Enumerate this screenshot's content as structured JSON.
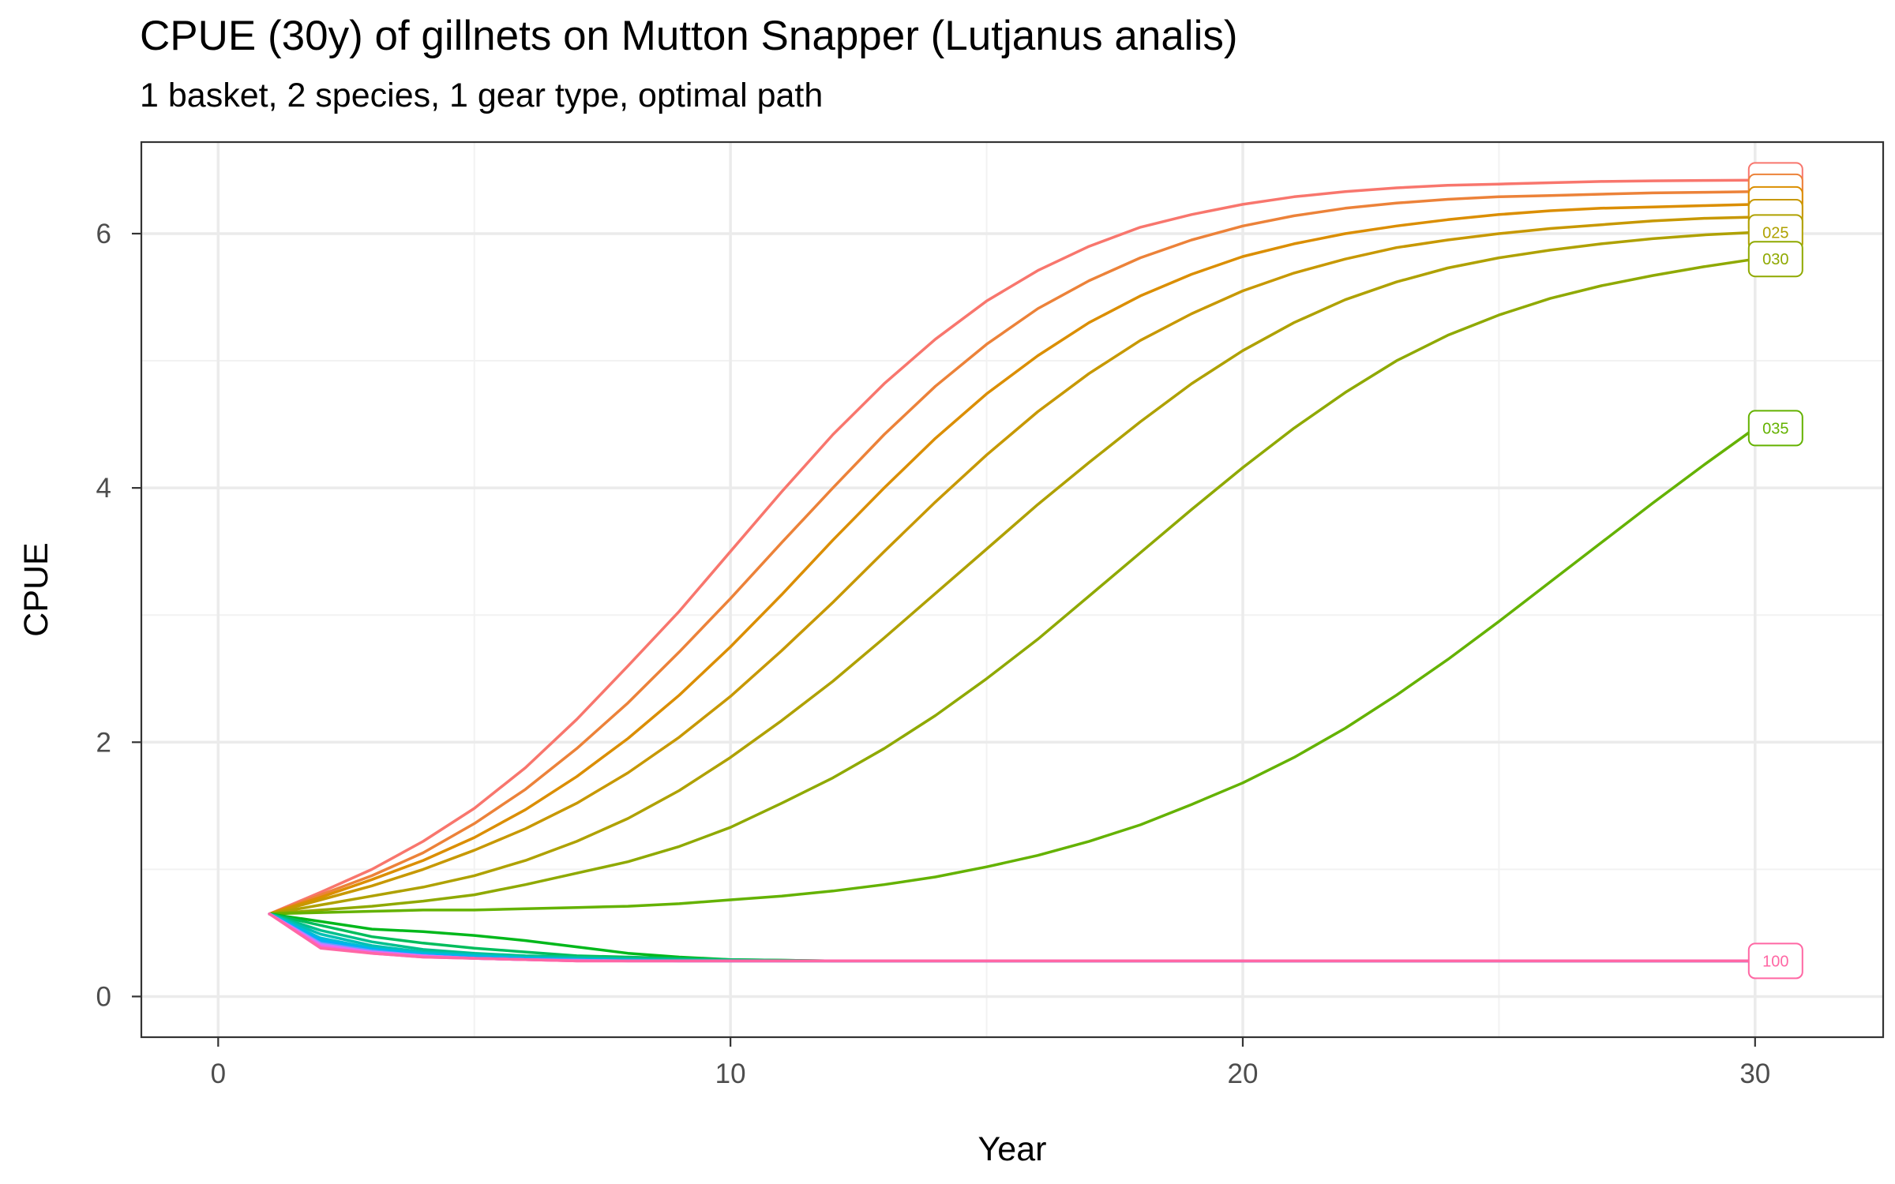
{
  "chart_data": {
    "type": "line",
    "title": "CPUE (30y) of gillnets on Mutton Snapper (Lutjanus analis)",
    "subtitle": "1 basket, 2 species, 1 gear type, optimal path",
    "xlabel": "Year",
    "ylabel": "CPUE",
    "xlim": [
      -1.5,
      32.5
    ],
    "ylim": [
      -0.32,
      6.72
    ],
    "xticks": [
      0,
      10,
      20,
      30
    ],
    "yticks": [
      0,
      2,
      4,
      6
    ],
    "grid": true,
    "legend": "none",
    "x": [
      1,
      2,
      3,
      4,
      5,
      6,
      7,
      8,
      9,
      10,
      11,
      12,
      13,
      14,
      15,
      16,
      17,
      18,
      19,
      20,
      21,
      22,
      23,
      24,
      25,
      26,
      27,
      28,
      29,
      30
    ],
    "series": [
      {
        "name": "",
        "color": "#f8766d",
        "values": [
          0.65,
          0.82,
          1.0,
          1.22,
          1.48,
          1.8,
          2.18,
          2.6,
          3.03,
          3.5,
          3.97,
          4.42,
          4.82,
          5.17,
          5.47,
          5.71,
          5.9,
          6.05,
          6.15,
          6.23,
          6.29,
          6.33,
          6.36,
          6.38,
          6.39,
          6.4,
          6.41,
          6.415,
          6.418,
          6.42
        ]
      },
      {
        "name": "",
        "color": "#ec8239",
        "values": [
          0.65,
          0.8,
          0.95,
          1.13,
          1.36,
          1.63,
          1.95,
          2.31,
          2.71,
          3.13,
          3.57,
          4.0,
          4.42,
          4.8,
          5.13,
          5.41,
          5.63,
          5.81,
          5.95,
          6.06,
          6.14,
          6.2,
          6.24,
          6.27,
          6.29,
          6.3,
          6.31,
          6.32,
          6.325,
          6.33
        ]
      },
      {
        "name": "",
        "color": "#db8e00",
        "values": [
          0.65,
          0.78,
          0.92,
          1.07,
          1.25,
          1.47,
          1.73,
          2.03,
          2.37,
          2.75,
          3.16,
          3.59,
          4.0,
          4.39,
          4.74,
          5.04,
          5.3,
          5.51,
          5.68,
          5.82,
          5.92,
          6.0,
          6.06,
          6.11,
          6.15,
          6.18,
          6.2,
          6.21,
          6.22,
          6.23
        ]
      },
      {
        "name": "",
        "color": "#c79800",
        "values": [
          0.65,
          0.76,
          0.87,
          1.0,
          1.15,
          1.32,
          1.52,
          1.76,
          2.04,
          2.36,
          2.72,
          3.1,
          3.5,
          3.89,
          4.26,
          4.6,
          4.9,
          5.16,
          5.37,
          5.55,
          5.69,
          5.8,
          5.89,
          5.95,
          6.0,
          6.04,
          6.07,
          6.1,
          6.12,
          6.13
        ]
      },
      {
        "name": "025",
        "color": "#afa100",
        "values": [
          0.65,
          0.72,
          0.79,
          0.86,
          0.95,
          1.07,
          1.22,
          1.4,
          1.62,
          1.88,
          2.17,
          2.48,
          2.82,
          3.17,
          3.52,
          3.87,
          4.2,
          4.52,
          4.82,
          5.08,
          5.3,
          5.48,
          5.62,
          5.73,
          5.81,
          5.87,
          5.92,
          5.96,
          5.99,
          6.01
        ]
      },
      {
        "name": "030",
        "color": "#8fa900",
        "values": [
          0.65,
          0.68,
          0.71,
          0.75,
          0.8,
          0.88,
          0.97,
          1.06,
          1.18,
          1.33,
          1.52,
          1.72,
          1.95,
          2.21,
          2.5,
          2.81,
          3.15,
          3.49,
          3.83,
          4.16,
          4.47,
          4.75,
          5.0,
          5.2,
          5.36,
          5.49,
          5.59,
          5.67,
          5.74,
          5.8
        ]
      },
      {
        "name": "035",
        "color": "#64b200",
        "values": [
          0.65,
          0.66,
          0.67,
          0.68,
          0.68,
          0.69,
          0.7,
          0.71,
          0.73,
          0.76,
          0.79,
          0.83,
          0.88,
          0.94,
          1.02,
          1.11,
          1.22,
          1.35,
          1.51,
          1.68,
          1.88,
          2.11,
          2.37,
          2.65,
          2.95,
          3.26,
          3.57,
          3.88,
          4.18,
          4.47
        ]
      },
      {
        "name": "",
        "color": "#00b81b",
        "values": [
          0.65,
          0.59,
          0.53,
          0.51,
          0.48,
          0.44,
          0.39,
          0.34,
          0.31,
          0.29,
          0.285,
          0.28,
          0.28,
          0.28,
          0.28,
          0.28,
          0.28,
          0.28,
          0.28,
          0.28,
          0.28,
          0.28,
          0.28,
          0.28,
          0.28,
          0.28,
          0.28,
          0.28,
          0.28,
          0.28
        ]
      },
      {
        "name": "",
        "color": "#00bd5c",
        "values": [
          0.65,
          0.56,
          0.47,
          0.42,
          0.38,
          0.35,
          0.32,
          0.31,
          0.3,
          0.29,
          0.285,
          0.28,
          0.28,
          0.28,
          0.28,
          0.28,
          0.28,
          0.28,
          0.28,
          0.28,
          0.28,
          0.28,
          0.28,
          0.28,
          0.28,
          0.28,
          0.28,
          0.28,
          0.28,
          0.28
        ]
      },
      {
        "name": "",
        "color": "#00c08d",
        "values": [
          0.65,
          0.52,
          0.43,
          0.37,
          0.34,
          0.32,
          0.31,
          0.3,
          0.29,
          0.285,
          0.28,
          0.28,
          0.28,
          0.28,
          0.28,
          0.28,
          0.28,
          0.28,
          0.28,
          0.28,
          0.28,
          0.28,
          0.28,
          0.28,
          0.28,
          0.28,
          0.28,
          0.28,
          0.28,
          0.28
        ]
      },
      {
        "name": "",
        "color": "#00c0b5",
        "values": [
          0.65,
          0.49,
          0.4,
          0.35,
          0.33,
          0.31,
          0.3,
          0.29,
          0.285,
          0.28,
          0.28,
          0.28,
          0.28,
          0.28,
          0.28,
          0.28,
          0.28,
          0.28,
          0.28,
          0.28,
          0.28,
          0.28,
          0.28,
          0.28,
          0.28,
          0.28,
          0.28,
          0.28,
          0.28,
          0.28
        ]
      },
      {
        "name": "",
        "color": "#00bcd8",
        "values": [
          0.65,
          0.46,
          0.38,
          0.34,
          0.32,
          0.3,
          0.29,
          0.285,
          0.28,
          0.28,
          0.28,
          0.28,
          0.28,
          0.28,
          0.28,
          0.28,
          0.28,
          0.28,
          0.28,
          0.28,
          0.28,
          0.28,
          0.28,
          0.28,
          0.28,
          0.28,
          0.28,
          0.28,
          0.28,
          0.28
        ]
      },
      {
        "name": "",
        "color": "#00b0f6",
        "values": [
          0.65,
          0.44,
          0.37,
          0.33,
          0.31,
          0.3,
          0.29,
          0.285,
          0.28,
          0.28,
          0.28,
          0.28,
          0.28,
          0.28,
          0.28,
          0.28,
          0.28,
          0.28,
          0.28,
          0.28,
          0.28,
          0.28,
          0.28,
          0.28,
          0.28,
          0.28,
          0.28,
          0.28,
          0.28,
          0.28
        ]
      },
      {
        "name": "",
        "color": "#619cff",
        "values": [
          0.65,
          0.42,
          0.36,
          0.32,
          0.3,
          0.29,
          0.285,
          0.28,
          0.28,
          0.28,
          0.28,
          0.28,
          0.28,
          0.28,
          0.28,
          0.28,
          0.28,
          0.28,
          0.28,
          0.28,
          0.28,
          0.28,
          0.28,
          0.28,
          0.28,
          0.28,
          0.28,
          0.28,
          0.28,
          0.28
        ]
      },
      {
        "name": "",
        "color": "#b983ff",
        "values": [
          0.65,
          0.41,
          0.35,
          0.32,
          0.3,
          0.29,
          0.285,
          0.28,
          0.28,
          0.28,
          0.28,
          0.28,
          0.28,
          0.28,
          0.28,
          0.28,
          0.28,
          0.28,
          0.28,
          0.28,
          0.28,
          0.28,
          0.28,
          0.28,
          0.28,
          0.28,
          0.28,
          0.28,
          0.28,
          0.28
        ]
      },
      {
        "name": "",
        "color": "#e76bf3",
        "values": [
          0.65,
          0.4,
          0.35,
          0.32,
          0.3,
          0.29,
          0.28,
          0.28,
          0.28,
          0.28,
          0.28,
          0.28,
          0.28,
          0.28,
          0.28,
          0.28,
          0.28,
          0.28,
          0.28,
          0.28,
          0.28,
          0.28,
          0.28,
          0.28,
          0.28,
          0.28,
          0.28,
          0.28,
          0.28,
          0.28
        ]
      },
      {
        "name": "",
        "color": "#fd61d1",
        "values": [
          0.65,
          0.39,
          0.34,
          0.31,
          0.3,
          0.29,
          0.28,
          0.28,
          0.28,
          0.28,
          0.28,
          0.28,
          0.28,
          0.28,
          0.28,
          0.28,
          0.28,
          0.28,
          0.28,
          0.28,
          0.28,
          0.28,
          0.28,
          0.28,
          0.28,
          0.28,
          0.28,
          0.28,
          0.28,
          0.28
        ]
      },
      {
        "name": "100",
        "color": "#ff67a4",
        "values": [
          0.65,
          0.38,
          0.34,
          0.31,
          0.3,
          0.29,
          0.28,
          0.28,
          0.28,
          0.28,
          0.28,
          0.28,
          0.28,
          0.28,
          0.28,
          0.28,
          0.28,
          0.28,
          0.28,
          0.28,
          0.28,
          0.28,
          0.28,
          0.28,
          0.28,
          0.28,
          0.28,
          0.28,
          0.28,
          0.28
        ]
      }
    ]
  }
}
